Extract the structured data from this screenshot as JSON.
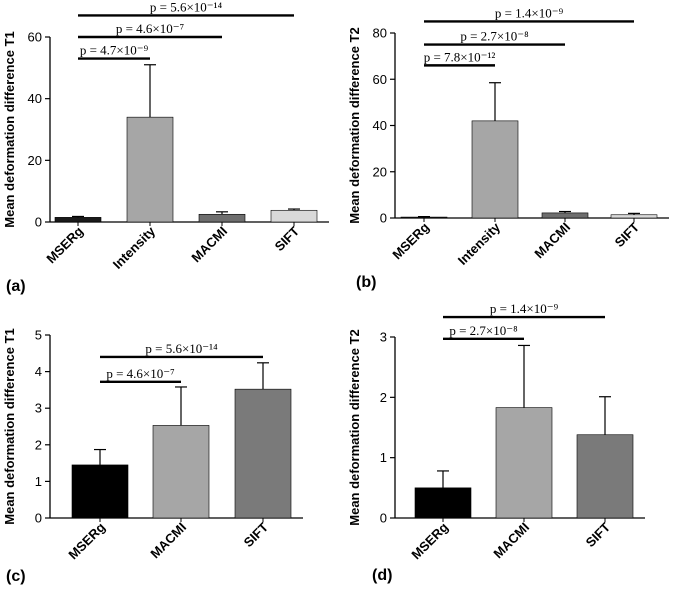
{
  "chart_data": [
    {
      "type": "bar",
      "panel_label": "(a)",
      "ylabel": "Mean deformation difference T1",
      "ylim": [
        0,
        60
      ],
      "yticks": [
        0,
        20,
        40,
        60
      ],
      "categories": [
        "MSERg",
        "Intensity",
        "MACMI",
        "SIFT"
      ],
      "values": [
        1.5,
        34,
        2.5,
        3.8
      ],
      "errors": [
        0.3,
        17,
        0.8,
        0.4
      ],
      "colors": [
        "#1a1a1a",
        "#a6a6a6",
        "#6e6e6e",
        "#d9d9d9"
      ],
      "comparisons": [
        {
          "from": "MSERg",
          "to": "Intensity",
          "p": "p = 4.7×10⁻⁹",
          "y": 53
        },
        {
          "from": "MSERg",
          "to": "MACMI",
          "p": "p = 4.6×10⁻⁷",
          "y": 60
        },
        {
          "from": "MSERg",
          "to": "SIFT",
          "p": "p = 5.6×10⁻¹⁴",
          "y": 67
        }
      ]
    },
    {
      "type": "bar",
      "panel_label": "(b)",
      "ylabel": "Mean deformation difference T2",
      "ylim": [
        0,
        80
      ],
      "yticks": [
        0,
        20,
        40,
        60,
        80
      ],
      "categories": [
        "MSERg",
        "Intensity",
        "MACMI",
        "SIFT"
      ],
      "values": [
        0.4,
        42,
        2.2,
        1.4
      ],
      "errors": [
        0.2,
        16.5,
        0.6,
        0.6
      ],
      "colors": [
        "#1a1a1a",
        "#a6a6a6",
        "#6e6e6e",
        "#d9d9d9"
      ],
      "comparisons": [
        {
          "from": "MSERg",
          "to": "Intensity",
          "p": "p = 7.8×10⁻¹²",
          "y": 66
        },
        {
          "from": "MSERg",
          "to": "MACMI",
          "p": "p = 2.7×10⁻⁸",
          "y": 75
        },
        {
          "from": "MSERg",
          "to": "SIFT",
          "p": "p = 1.4×10⁻⁹",
          "y": 85
        }
      ]
    },
    {
      "type": "bar",
      "panel_label": "(c)",
      "ylabel": "Mean deformation difference T1",
      "ylim": [
        0,
        5
      ],
      "yticks": [
        0,
        1,
        2,
        3,
        4,
        5
      ],
      "categories": [
        "MSERg",
        "MACMI",
        "SIFT"
      ],
      "values": [
        1.45,
        2.53,
        3.52
      ],
      "errors": [
        0.42,
        1.05,
        0.72
      ],
      "colors": [
        "#000000",
        "#a6a6a6",
        "#7a7a7a"
      ],
      "comparisons": [
        {
          "from": "MSERg",
          "to": "MACMI",
          "p": "p = 4.6×10⁻⁷",
          "y": 3.72
        },
        {
          "from": "MSERg",
          "to": "SIFT",
          "p": "p = 5.6×10⁻¹⁴",
          "y": 4.4
        }
      ]
    },
    {
      "type": "bar",
      "panel_label": "(d)",
      "ylabel": "Mean deformation difference T2",
      "ylim": [
        0,
        3
      ],
      "yticks": [
        0,
        1,
        2,
        3
      ],
      "categories": [
        "MSERg",
        "MACMI",
        "SIFT"
      ],
      "values": [
        0.5,
        1.83,
        1.38
      ],
      "errors": [
        0.28,
        1.03,
        0.63
      ],
      "colors": [
        "#000000",
        "#a6a6a6",
        "#7a7a7a"
      ],
      "comparisons": [
        {
          "from": "MSERg",
          "to": "MACMI",
          "p": "p = 2.7×10⁻⁸",
          "y": 2.97
        },
        {
          "from": "MSERg",
          "to": "SIFT",
          "p": "p = 1.4×10⁻⁹",
          "y": 3.33
        }
      ]
    }
  ]
}
